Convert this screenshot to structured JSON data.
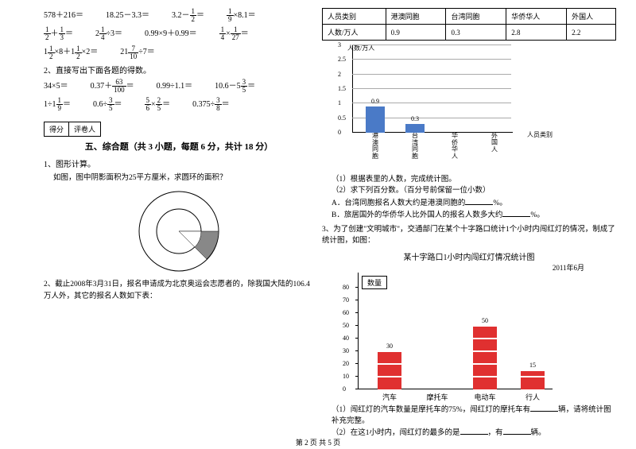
{
  "math": {
    "row1": [
      "578＋216＝",
      "18.25－3.3＝",
      "3.2－",
      "＝",
      "×8.1＝"
    ],
    "row1_fracs": {
      "a": {
        "n": "1",
        "d": "2"
      },
      "b": {
        "n": "1",
        "d": "9"
      }
    },
    "row2": {
      "f1": {
        "n": "1",
        "d": "2"
      },
      "f2": {
        "n": "1",
        "d": "3"
      },
      "f3": {
        "n": "1",
        "d": "4"
      },
      "f4": {
        "n": "1",
        "d": "4"
      },
      "f5": {
        "n": "1",
        "d": "27"
      },
      "t1": "＋",
      "t2": "＝",
      "t3": "2",
      "t4": "÷3＝",
      "t5": "0.99×9＋0.99＝",
      "t6": "×",
      "t7": "＝"
    },
    "row3": {
      "t1": "1",
      "f1": {
        "n": "1",
        "d": "2"
      },
      "t2": "×8＋1",
      "f2": {
        "n": "1",
        "d": "2"
      },
      "t3": "×2＝",
      "t4": "21",
      "f3": {
        "n": "7",
        "d": "10"
      },
      "t5": "÷7＝"
    },
    "q2": "2、直接写出下面各题的得数。",
    "row4": {
      "t1": "34×5＝",
      "t2": "0.37＋",
      "f1": {
        "n": "63",
        "d": "100"
      },
      "t3": "＝",
      "t4": "0.99÷1.1＝",
      "t5": "10.6－5",
      "f2": {
        "n": "3",
        "d": "5"
      },
      "t6": "＝"
    },
    "row5": {
      "t1": "1÷1",
      "f1": {
        "n": "1",
        "d": "9"
      },
      "t2": "＝",
      "t3": "0.6÷",
      "f2": {
        "n": "3",
        "d": "5"
      },
      "t4": "＝",
      "f3": {
        "n": "5",
        "d": "6"
      },
      "t5": "×",
      "f4": {
        "n": "2",
        "d": "5"
      },
      "t6": "＝",
      "t7": "0.375÷",
      "f5": {
        "n": "3",
        "d": "8"
      },
      "t8": "＝"
    }
  },
  "score": {
    "c1": "得分",
    "c2": "评卷人"
  },
  "section5": "五、综合题（共 3 小题，每题 6 分，共计 18 分）",
  "q1": {
    "label": "1、图形计算。",
    "text": "如图，图中阴影面积为25平方厘米，求圆环的面积？"
  },
  "q2": {
    "label": "2、截止2008年3月31日，报名申请成为北京奥运会志愿者的，除我国大陆的106.4万人外，其它的报名人数如下表："
  },
  "table": {
    "h1": "人员类别",
    "h2": "港澳同胞",
    "h3": "台湾同胞",
    "h4": "华侨华人",
    "h5": "外国人",
    "r1": "人数/万人",
    "v1": "0.9",
    "v2": "0.3",
    "v3": "2.8",
    "v4": "2.2"
  },
  "chart1": {
    "y_title": "人数/万人",
    "x_title": "人员类别",
    "yticks": [
      "3",
      "2.5",
      "2",
      "1.5",
      "1",
      "0.5",
      "0"
    ],
    "cats": [
      "港澳同胞",
      "台湾同胞",
      "华侨华人",
      "外国人"
    ],
    "vals": [
      "0.9",
      "0.3"
    ],
    "bar_color": "#4a7ac7",
    "grid_color": "#aaaaaa"
  },
  "q2sub": {
    "s1": "（1）根据表里的人数，完成统计图。",
    "s2": "（2）求下列百分数。（百分号前保留一位小数）",
    "sA": "A．台湾同胞报名人数大约是港澳同胞的",
    "sA2": "%。",
    "sB": "B．旅居国外的华侨华人比外国人的报名人数多大约",
    "sB2": "%。"
  },
  "q3": {
    "label": "3、为了创建\"文明城市\"，交通部门在某个十字路口统计1个小时内闯红灯的情况，制成了统计图，如图：",
    "title": "某十字路口1小时内闯红灯情况统计图",
    "date": "2011年6月",
    "box": "数量",
    "yticks": [
      "80",
      "70",
      "60",
      "50",
      "40",
      "30",
      "20",
      "10",
      "0"
    ],
    "cats": [
      "汽车",
      "摩托车",
      "电动车",
      "行人"
    ],
    "vals": [
      30,
      0,
      50,
      15
    ],
    "labels": [
      "30",
      "",
      "50",
      "15"
    ],
    "bar_color": "#e03030"
  },
  "q3sub": {
    "s1a": "（1）闯红灯的汽车数量是摩托车的75%，闯红灯的摩托车有",
    "s1b": "辆，请将统计图补充完整。",
    "s2a": "（2）在这1小时内，闯红灯的最多的是",
    "s2b": "，有",
    "s2c": "辆。"
  },
  "footer": "第 2 页 共 5 页"
}
